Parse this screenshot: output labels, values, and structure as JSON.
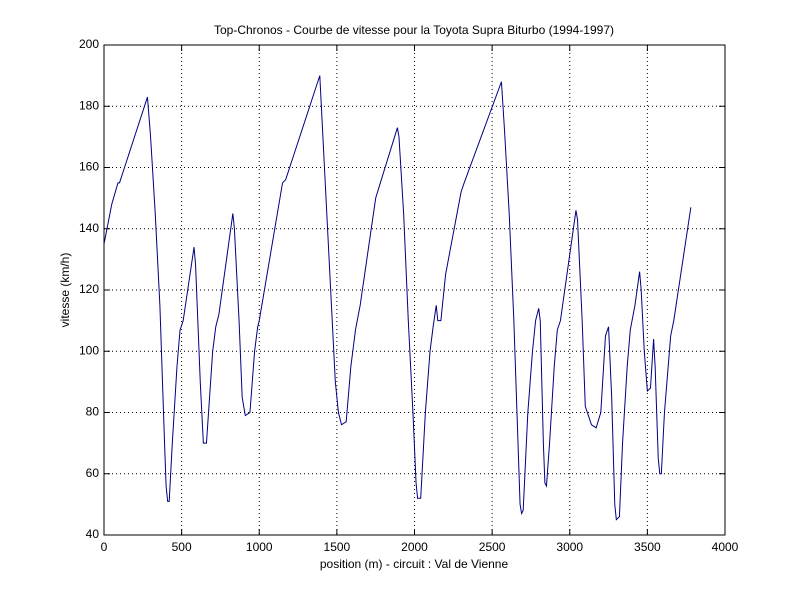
{
  "chart_data": {
    "type": "line",
    "title": "Top-Chronos - Courbe de vitesse pour la Toyota Supra Biturbo (1994-1997)",
    "xlabel": "position (m) - circuit : Val de Vienne",
    "ylabel": "vitesse (km/h)",
    "x": [
      0,
      50,
      90,
      100,
      280,
      300,
      330,
      360,
      390,
      400,
      410,
      420,
      440,
      470,
      490,
      510,
      580,
      590,
      620,
      640,
      660,
      680,
      700,
      720,
      740,
      830,
      840,
      870,
      890,
      910,
      940,
      970,
      990,
      1000,
      1150,
      1170,
      1390,
      1410,
      1440,
      1470,
      1490,
      1510,
      1530,
      1560,
      1590,
      1620,
      1650,
      1750,
      1780,
      1890,
      1900,
      1930,
      1960,
      1990,
      2010,
      2020,
      2040,
      2070,
      2100,
      2120,
      2140,
      2150,
      2170,
      2200,
      2300,
      2320,
      2560,
      2580,
      2610,
      2640,
      2660,
      2680,
      2690,
      2700,
      2730,
      2760,
      2780,
      2800,
      2810,
      2830,
      2840,
      2850,
      2870,
      2900,
      2920,
      2940,
      3040,
      3050,
      3080,
      3100,
      3140,
      3170,
      3200,
      3230,
      3250,
      3270,
      3290,
      3300,
      3320,
      3340,
      3370,
      3390,
      3420,
      3450,
      3460,
      3480,
      3500,
      3520,
      3540,
      3550,
      3570,
      3580,
      3590,
      3610,
      3650,
      3670,
      3780
    ],
    "series": [
      {
        "color": "#000080",
        "values": [
          135,
          148,
          155,
          155,
          183,
          170,
          145,
          115,
          70,
          56,
          51,
          51,
          70,
          95,
          107,
          110,
          134,
          128,
          90,
          70,
          70,
          85,
          100,
          108,
          112,
          145,
          140,
          110,
          85,
          79,
          80,
          100,
          108,
          110,
          155,
          156,
          190,
          170,
          140,
          110,
          90,
          80,
          76,
          77,
          95,
          107,
          115,
          150,
          155,
          173,
          170,
          145,
          110,
          80,
          57,
          52,
          52,
          80,
          100,
          108,
          115,
          110,
          110,
          125,
          152,
          155,
          188,
          172,
          145,
          110,
          80,
          50,
          47,
          48,
          80,
          100,
          110,
          114,
          110,
          70,
          57,
          56,
          70,
          95,
          107,
          110,
          146,
          143,
          110,
          82,
          76,
          75,
          80,
          105,
          108,
          85,
          50,
          45,
          46,
          70,
          95,
          107,
          115,
          126,
          120,
          100,
          87,
          88,
          104,
          95,
          65,
          60,
          60,
          80,
          105,
          110,
          147
        ]
      }
    ],
    "xlim": [
      0,
      4000
    ],
    "xticks": [
      0,
      500,
      1000,
      1500,
      2000,
      2500,
      3000,
      3500,
      4000
    ],
    "ylim": [
      40,
      200
    ],
    "yticks": [
      40,
      60,
      80,
      100,
      120,
      140,
      160,
      180,
      200
    ],
    "grid": true
  }
}
